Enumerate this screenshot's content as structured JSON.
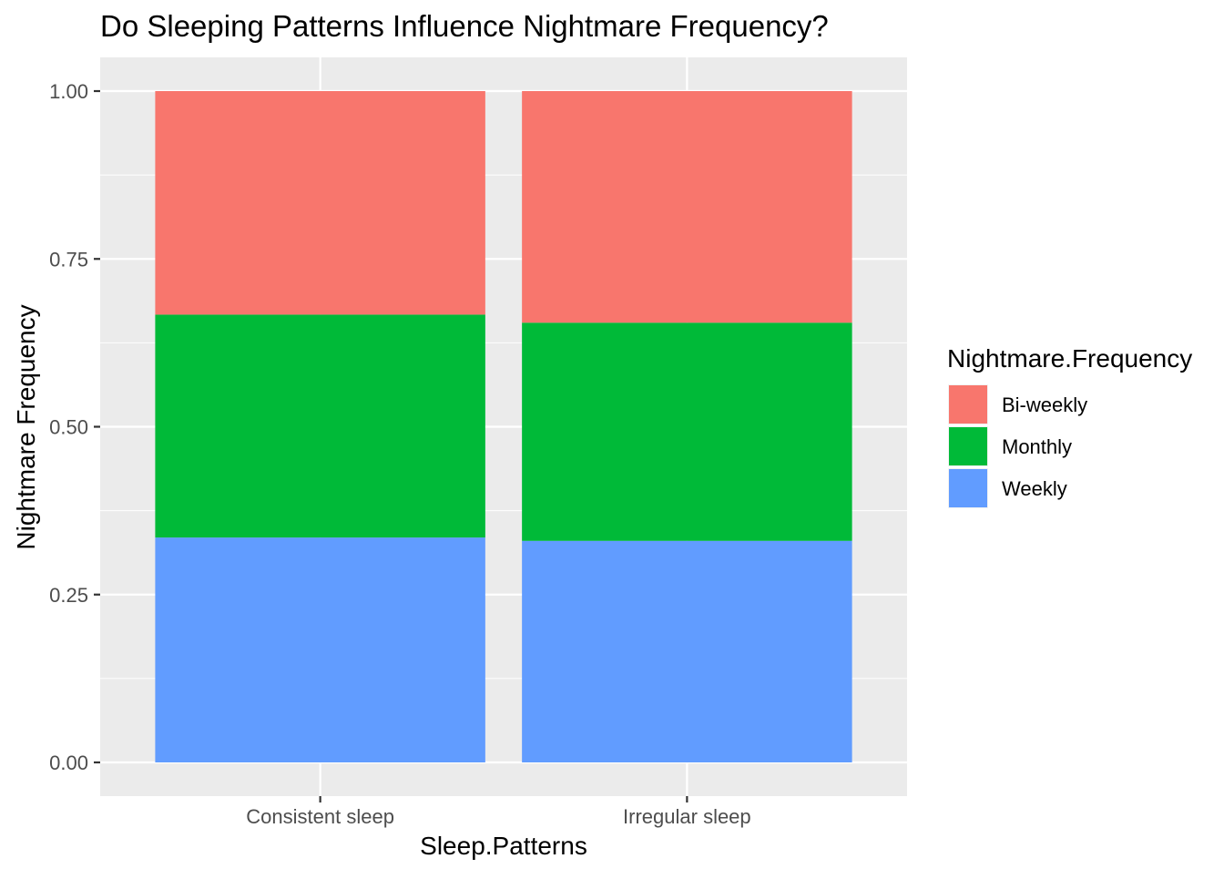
{
  "chart_data": {
    "type": "bar",
    "stacked": true,
    "position": "fill",
    "title": "Do Sleeping Patterns Influence Nightmare Frequency?",
    "xlabel": "Sleep.Patterns",
    "ylabel": "Nightmare Frequency",
    "categories": [
      "Consistent sleep",
      "Irregular sleep"
    ],
    "ylim": [
      0,
      1
    ],
    "yticks": [
      0.0,
      0.25,
      0.5,
      0.75,
      1.0
    ],
    "ytick_labels": [
      "0.00",
      "0.25",
      "0.50",
      "0.75",
      "1.00"
    ],
    "series": [
      {
        "name": "Weekly",
        "values": [
          0.335,
          0.33
        ],
        "color": "#619CFF"
      },
      {
        "name": "Monthly",
        "values": [
          0.332,
          0.325
        ],
        "color": "#00BA38"
      },
      {
        "name": "Bi-weekly",
        "values": [
          0.333,
          0.345
        ],
        "color": "#F8766D"
      }
    ],
    "legend": {
      "title": "Nightmare.Frequency",
      "placement": "right",
      "entries": [
        "Bi-weekly",
        "Monthly",
        "Weekly"
      ]
    },
    "grid": true,
    "panel_background": "#EBEBEB",
    "grid_color": "#FFFFFF"
  }
}
